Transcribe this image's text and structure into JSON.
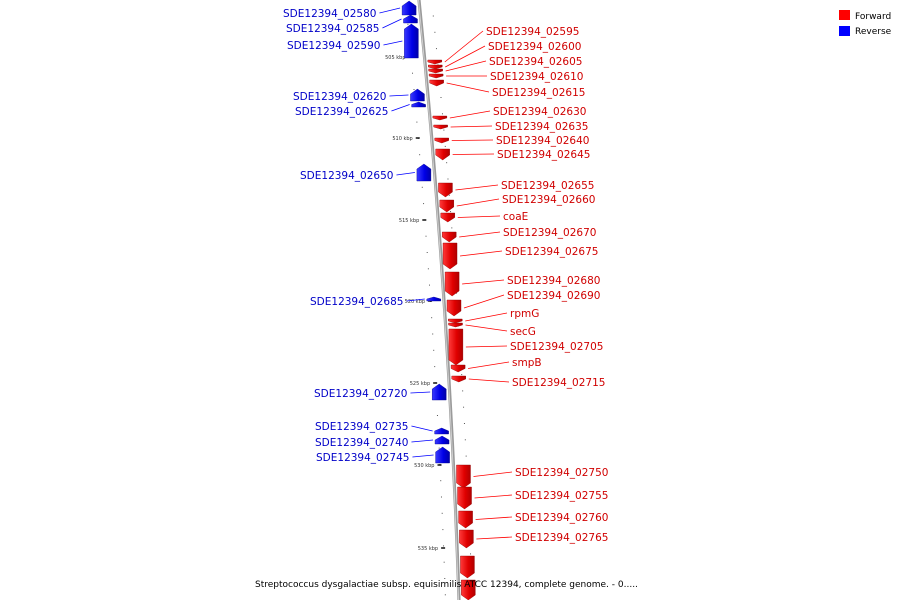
{
  "legend": {
    "forward_label": "Forward",
    "reverse_label": "Reverse",
    "forward_color": "#ff0000",
    "reverse_color": "#0000ff"
  },
  "caption": "Streptococcus dysgalactiae subsp. equisimilis ATCC 12394, complete genome. - 0.....",
  "scale_labels": [
    "505 kbp",
    "510 kbp",
    "515 kbp",
    "520 kbp",
    "525 kbp",
    "530 kbp",
    "535 kbp"
  ],
  "forward_genes": [
    "SDE12394_02595",
    "SDE12394_02600",
    "SDE12394_02605",
    "SDE12394_02610",
    "SDE12394_02615",
    "SDE12394_02630",
    "SDE12394_02635",
    "SDE12394_02640",
    "SDE12394_02645",
    "SDE12394_02655",
    "SDE12394_02660",
    "coaE",
    "SDE12394_02670",
    "SDE12394_02675",
    "SDE12394_02680",
    "SDE12394_02690",
    "rpmG",
    "secG",
    "SDE12394_02705",
    "smpB",
    "SDE12394_02715",
    "SDE12394_02750",
    "SDE12394_02755",
    "SDE12394_02760",
    "SDE12394_02765"
  ],
  "reverse_genes": [
    "SDE12394_02580",
    "SDE12394_02585",
    "SDE12394_02590",
    "SDE12394_02620",
    "SDE12394_02625",
    "SDE12394_02650",
    "SDE12394_02685",
    "SDE12394_02720",
    "SDE12394_02735",
    "SDE12394_02740",
    "SDE12394_02745"
  ]
}
